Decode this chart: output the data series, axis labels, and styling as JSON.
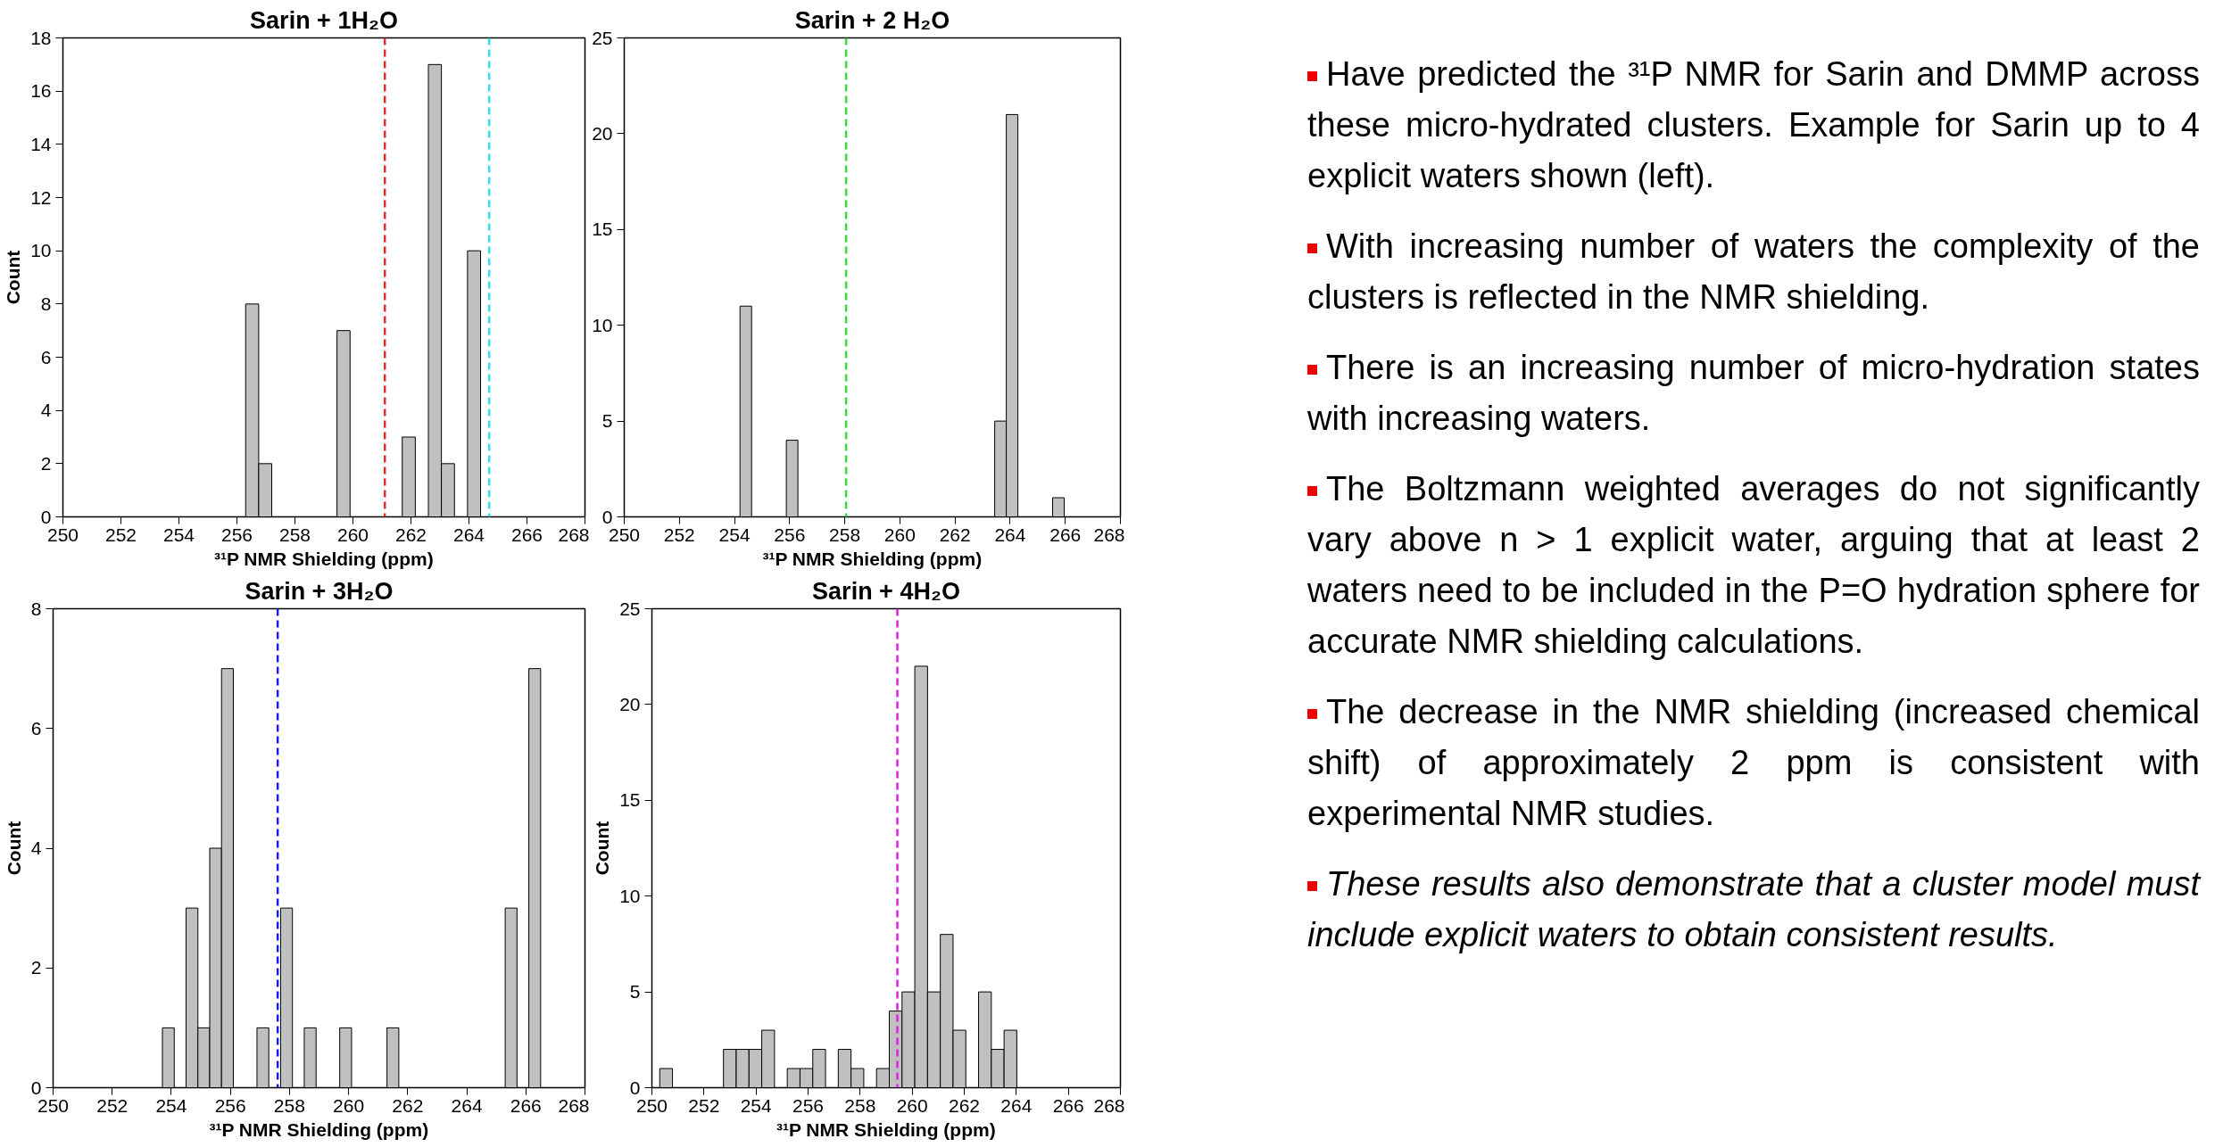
{
  "chart_data": [
    {
      "type": "histogram",
      "title": "Sarin + 1H₂O",
      "xlabel": "³¹P NMR Shielding (ppm)",
      "ylabel": "Count",
      "color": "#c0c0c0",
      "bins": [
        256.3,
        256.75,
        257.2,
        257.65,
        258.1,
        258.55,
        259.0,
        259.45,
        259.9,
        260.35,
        260.8,
        261.25,
        261.7,
        262.15,
        262.6,
        263.05,
        263.5,
        263.95,
        264.4
      ],
      "values": [
        8,
        2,
        0,
        0,
        0,
        0,
        0,
        7,
        0,
        0,
        0,
        0,
        3,
        0,
        17,
        2,
        0,
        10
      ],
      "xlim": [
        250,
        268
      ],
      "xticks": [
        250,
        252,
        254,
        256,
        258,
        260,
        262,
        264,
        266,
        268
      ],
      "ylim": [
        0,
        18
      ],
      "yticks": [
        0,
        2,
        4,
        6,
        8,
        10,
        12,
        14,
        16,
        18
      ],
      "ref_lines": [
        {
          "axis": "x",
          "value": 261.1,
          "color": "#e03030",
          "line_style": "dashed"
        },
        {
          "axis": "x",
          "value": 264.7,
          "color": "#33e0f0",
          "line_style": "dashed"
        }
      ]
    },
    {
      "type": "histogram",
      "title": "Sarin + 2 H₂O",
      "xlabel": "³¹P NMR Shielding (ppm)",
      "color": "#c0c0c0",
      "bins": [
        254.2,
        254.62,
        255.04,
        255.46,
        255.88,
        256.3,
        256.72,
        257.14,
        257.56,
        257.98,
        258.4,
        258.82,
        259.24,
        259.66,
        260.08,
        260.5,
        260.92,
        261.34,
        261.76,
        262.18,
        262.6,
        263.02,
        263.44,
        263.86,
        264.28,
        264.7,
        265.12,
        265.54,
        265.96
      ],
      "values": [
        11,
        0,
        0,
        0,
        4,
        0,
        0,
        0,
        0,
        0,
        0,
        0,
        0,
        0,
        0,
        0,
        0,
        0,
        0,
        0,
        0,
        0,
        5,
        21,
        0,
        0,
        0,
        1
      ],
      "xlim": [
        250,
        268
      ],
      "xticks": [
        250,
        252,
        254,
        256,
        258,
        260,
        262,
        264,
        266,
        268
      ],
      "ylim": [
        0,
        25
      ],
      "yticks": [
        0,
        5,
        10,
        15,
        20,
        25
      ],
      "ref_lines": [
        {
          "axis": "x",
          "value": 258.05,
          "color": "#33dd33",
          "line_style": "dashed"
        }
      ]
    },
    {
      "type": "histogram",
      "title": "Sarin + 3H₂O",
      "xlabel": "³¹P NMR Shielding (ppm)",
      "ylabel": "Count",
      "color": "#c0c0c0",
      "bins": [
        253.7,
        254.1,
        254.5,
        254.9,
        255.3,
        255.7,
        256.1,
        256.5,
        256.9,
        257.3,
        257.7,
        258.1,
        258.5,
        258.9,
        259.3,
        259.7,
        260.1,
        260.5,
        260.9,
        261.3,
        261.7,
        262.1,
        262.5,
        262.9,
        263.3,
        263.7,
        264.1,
        264.5,
        264.9,
        265.3,
        265.7,
        266.1,
        266.5
      ],
      "values": [
        1,
        0,
        3,
        1,
        4,
        7,
        0,
        0,
        1,
        0,
        3,
        0,
        1,
        0,
        0,
        1,
        0,
        0,
        0,
        1,
        0,
        0,
        0,
        0,
        0,
        0,
        0,
        0,
        0,
        3,
        0,
        7
      ],
      "xlim": [
        250,
        268
      ],
      "xticks": [
        250,
        252,
        254,
        256,
        258,
        260,
        262,
        264,
        266,
        268
      ],
      "ylim": [
        0,
        8
      ],
      "yticks": [
        0,
        2,
        4,
        6,
        8
      ],
      "ref_lines": [
        {
          "axis": "x",
          "value": 257.6,
          "color": "#1a1aee",
          "line_style": "dashed"
        }
      ]
    },
    {
      "type": "histogram",
      "title": "Sarin + 4H₂O",
      "xlabel": "³¹P NMR Shielding (ppm)",
      "ylabel": "Count",
      "color": "#c0c0c0",
      "bins": [
        250.3,
        250.79,
        251.28,
        251.77,
        252.26,
        252.75,
        253.24,
        253.73,
        254.22,
        254.71,
        255.2,
        255.69,
        256.18,
        256.67,
        257.16,
        257.65,
        258.14,
        258.63,
        259.12,
        259.61,
        260.1,
        260.59,
        261.08,
        261.57,
        262.06,
        262.55,
        263.04,
        263.53,
        264.02
      ],
      "values": [
        1,
        0,
        0,
        0,
        0,
        2,
        2,
        2,
        3,
        0,
        1,
        1,
        2,
        0,
        2,
        1,
        0,
        1,
        4,
        5,
        22,
        5,
        8,
        3,
        0,
        5,
        2,
        3
      ],
      "xlim": [
        250,
        268
      ],
      "xticks": [
        250,
        252,
        254,
        256,
        258,
        260,
        262,
        264,
        266,
        268
      ],
      "ylim": [
        0,
        25
      ],
      "yticks": [
        0,
        5,
        10,
        15,
        20,
        25
      ],
      "ref_lines": [
        {
          "axis": "x",
          "value": 259.43,
          "color": "#e020e0",
          "line_style": "dashed"
        }
      ]
    },
    {
      "type": "other",
      "annotations": [
        "Have predicted the ³¹P NMR for Sarin and DMMP across these micro-hydrated clusters. Example for Sarin up to 4 explicit waters shown  (left).",
        "With increasing number of waters the complexity of the clusters is reflected in the NMR shielding.",
        "There is an increasing number of micro-hydration states with increasing waters.",
        "The Boltzmann weighted averages do not significantly vary above n > 1 explicit water, arguing that at least 2 waters need to be included in the P=O hydration sphere for accurate NMR shielding calculations.",
        "The decrease in the NMR shielding (increased chemical shift)  of approximately 2 ppm is consistent with experimental NMR studies.",
        "These results also demonstrate that a cluster model must include explicit waters to obtain consistent results."
      ]
    }
  ]
}
